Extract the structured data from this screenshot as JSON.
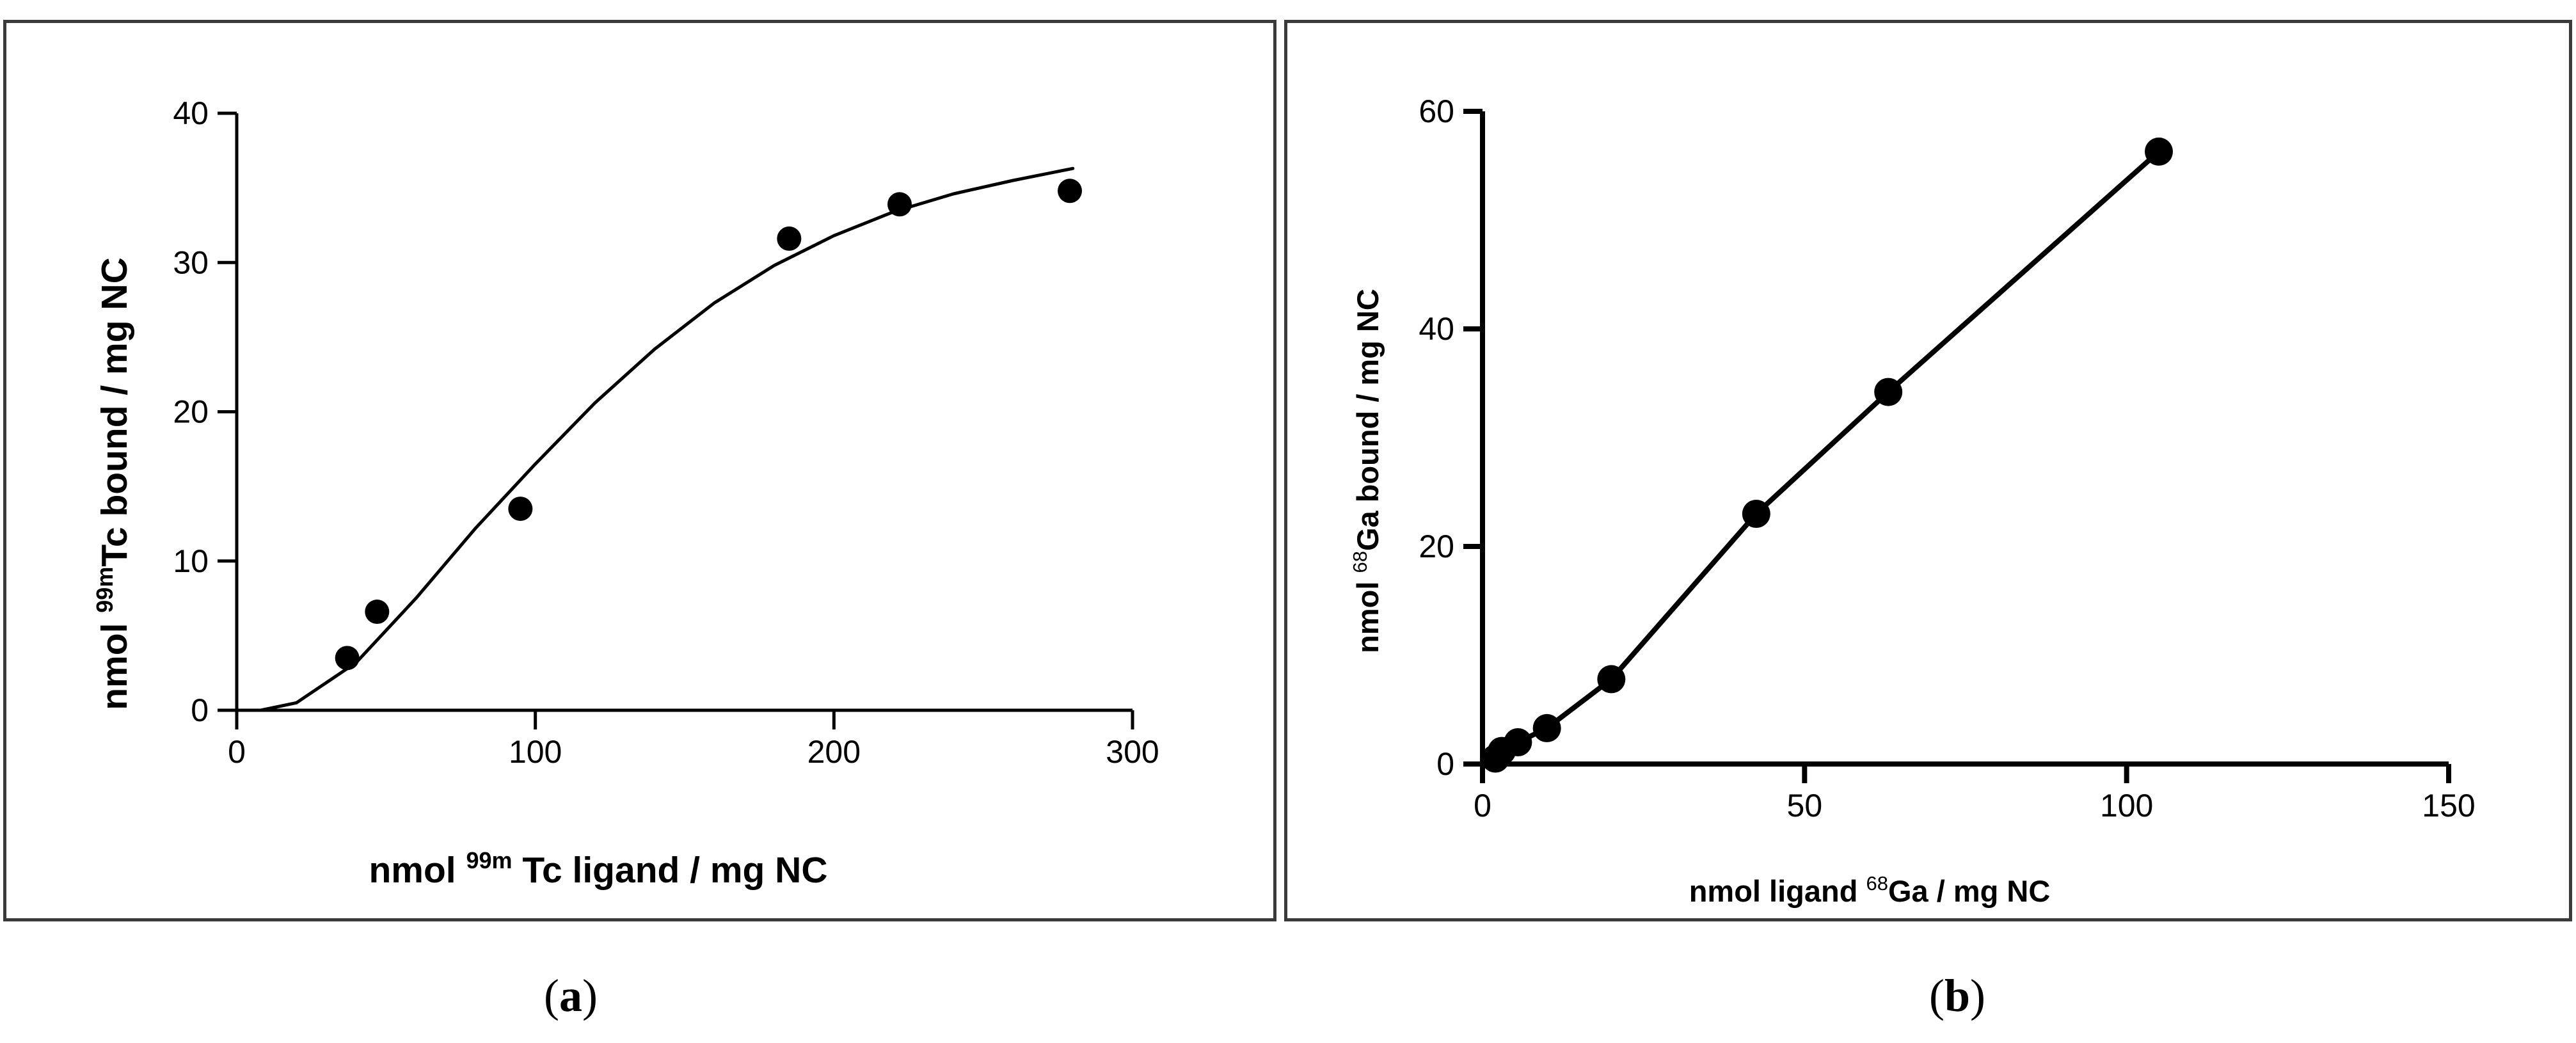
{
  "chart_data": [
    {
      "panel": "a",
      "type": "scatter",
      "x_axis_title": {
        "pre": "nmol ",
        "sup": "99m",
        "post": " Tc ligand / mg NC"
      },
      "y_axis_title": {
        "pre": "nmol ",
        "sup": "99m",
        "post": "Tc bound / mg NC"
      },
      "xlim": [
        0,
        300
      ],
      "ylim": [
        0,
        40
      ],
      "x_ticks": [
        0,
        100,
        200,
        300
      ],
      "y_ticks": [
        0,
        10,
        20,
        30,
        40
      ],
      "x_tick_labels": [
        "0",
        "100",
        "200",
        "300"
      ],
      "y_tick_labels": [
        "0",
        "10",
        "20",
        "30",
        "40"
      ],
      "points": [
        {
          "x": 37,
          "y": 3.5
        },
        {
          "x": 47,
          "y": 6.6
        },
        {
          "x": 95,
          "y": 13.5
        },
        {
          "x": 185,
          "y": 31.6
        },
        {
          "x": 222,
          "y": 33.9
        },
        {
          "x": 279,
          "y": 34.8
        }
      ],
      "fit": {
        "model": "sigmoid (Hill)",
        "curve": [
          {
            "x": 8,
            "y": 0
          },
          {
            "x": 20,
            "y": 0.5
          },
          {
            "x": 40,
            "y": 3.2
          },
          {
            "x": 60,
            "y": 7.5
          },
          {
            "x": 80,
            "y": 12.2
          },
          {
            "x": 100,
            "y": 16.5
          },
          {
            "x": 120,
            "y": 20.6
          },
          {
            "x": 140,
            "y": 24.2
          },
          {
            "x": 160,
            "y": 27.3
          },
          {
            "x": 180,
            "y": 29.8
          },
          {
            "x": 200,
            "y": 31.8
          },
          {
            "x": 220,
            "y": 33.4
          },
          {
            "x": 240,
            "y": 34.6
          },
          {
            "x": 260,
            "y": 35.5
          },
          {
            "x": 280,
            "y": 36.3
          }
        ]
      }
    },
    {
      "panel": "b",
      "type": "scatter",
      "x_axis_title": {
        "pre": "nmol ligand  ",
        "sup": "68",
        "post": "Ga / mg NC"
      },
      "y_axis_title": {
        "pre": "nmol ",
        "sup": "68",
        "post": "Ga bound / mg NC"
      },
      "xlim": [
        0,
        150
      ],
      "ylim": [
        0,
        60
      ],
      "x_ticks": [
        0,
        50,
        100,
        150
      ],
      "y_ticks": [
        0,
        20,
        40,
        60
      ],
      "x_tick_labels": [
        "0",
        "50",
        "100",
        "150"
      ],
      "y_tick_labels": [
        "0",
        "20",
        "40",
        "60"
      ],
      "points": [
        {
          "x": 2,
          "y": 0.5
        },
        {
          "x": 3,
          "y": 1.2
        },
        {
          "x": 5.5,
          "y": 2.0
        },
        {
          "x": 10,
          "y": 3.3
        },
        {
          "x": 20,
          "y": 7.8
        },
        {
          "x": 42.5,
          "y": 23.0
        },
        {
          "x": 63,
          "y": 34.2
        },
        {
          "x": 105,
          "y": 56.3
        }
      ],
      "fit": {
        "model": "line through points",
        "curve": [
          {
            "x": 1,
            "y": 0
          },
          {
            "x": 2,
            "y": 0.5
          },
          {
            "x": 3,
            "y": 1.2
          },
          {
            "x": 5.5,
            "y": 2.0
          },
          {
            "x": 10,
            "y": 3.3
          },
          {
            "x": 20,
            "y": 7.8
          },
          {
            "x": 42.5,
            "y": 23.0
          },
          {
            "x": 63,
            "y": 34.2
          },
          {
            "x": 105,
            "y": 56.3
          }
        ]
      }
    }
  ],
  "panel_labels": {
    "a": {
      "open": "(",
      "letter": "a",
      "close": ")"
    },
    "b": {
      "open": "(",
      "letter": "b",
      "close": ")"
    }
  }
}
